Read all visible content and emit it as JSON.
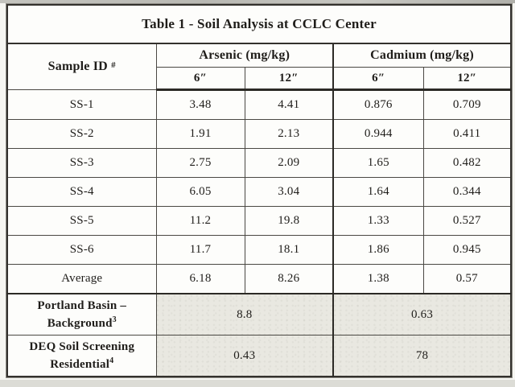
{
  "title": "Table 1 - Soil Analysis at CCLC Center",
  "header": {
    "sample_id": "Sample ID",
    "sample_id_symbol": "#",
    "groups": [
      {
        "label": "Arsenic (mg/kg)",
        "depths": [
          "6″",
          "12″"
        ]
      },
      {
        "label": "Cadmium (mg/kg)",
        "depths": [
          "6″",
          "12″"
        ]
      }
    ]
  },
  "rows": [
    {
      "id": "SS-1",
      "values": [
        "3.48",
        "4.41",
        "0.876",
        "0.709"
      ]
    },
    {
      "id": "SS-2",
      "values": [
        "1.91",
        "2.13",
        "0.944",
        "0.411"
      ]
    },
    {
      "id": "SS-3",
      "values": [
        "2.75",
        "2.09",
        "1.65",
        "0.482"
      ]
    },
    {
      "id": "SS-4",
      "values": [
        "6.05",
        "3.04",
        "1.64",
        "0.344"
      ]
    },
    {
      "id": "SS-5",
      "values": [
        "11.2",
        "19.8",
        "1.33",
        "0.527"
      ]
    },
    {
      "id": "SS-6",
      "values": [
        "11.7",
        "18.1",
        "1.86",
        "0.945"
      ]
    },
    {
      "id": "Average",
      "values": [
        "6.18",
        "8.26",
        "1.38",
        "0.57"
      ]
    }
  ],
  "reference_rows": [
    {
      "line1": "Portland Basin –",
      "line2": "Background",
      "superscript": "3",
      "arsenic": "8.8",
      "cadmium": "0.63"
    },
    {
      "line1": "DEQ Soil Screening",
      "line2": "Residential",
      "superscript": "4",
      "arsenic": "0.43",
      "cadmium": "78"
    }
  ],
  "colors": {
    "border": "#33312d",
    "shaded_cell": "#e9e8e1",
    "paper": "#fdfdfb",
    "text": "#1f1d1a"
  }
}
